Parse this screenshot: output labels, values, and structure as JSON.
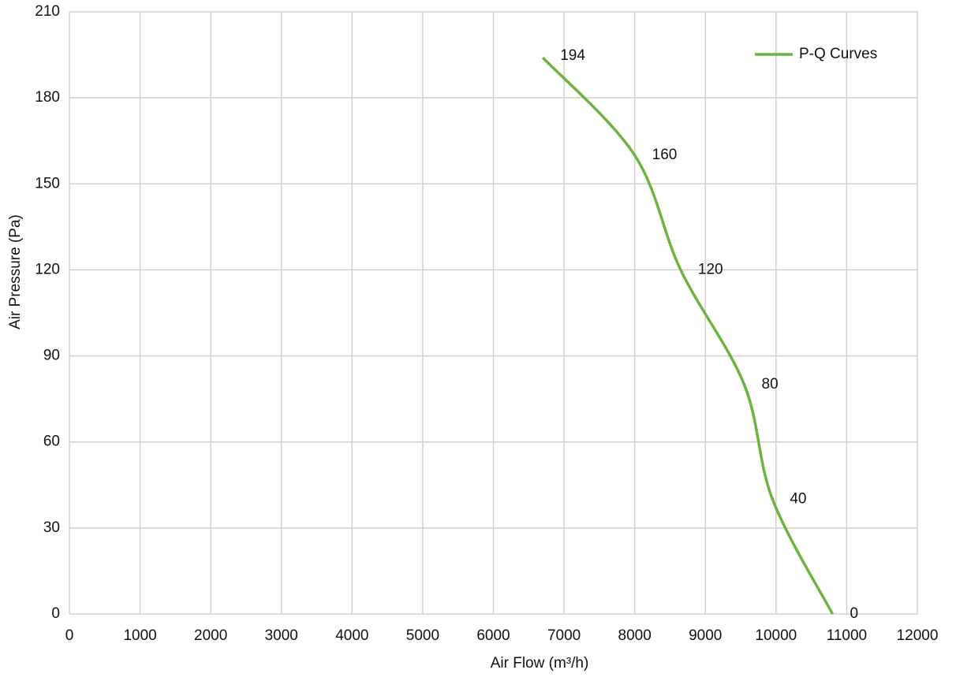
{
  "chart_data": {
    "type": "line",
    "x_label": "Air Flow  (m³/h)",
    "y_label": "Air Pressure  (Pa)",
    "series": [
      {
        "name": "P-Q Curves",
        "color": "#6db33f",
        "x": [
          6700,
          8000,
          8650,
          9550,
          9950,
          10800
        ],
        "values": [
          194,
          160,
          120,
          80,
          40,
          0
        ]
      }
    ],
    "xlim": [
      0,
      12000
    ],
    "xticks": [
      0,
      1000,
      2000,
      3000,
      4000,
      5000,
      6000,
      7000,
      8000,
      9000,
      10000,
      11000,
      12000
    ],
    "ylim": [
      0,
      210
    ],
    "yticks": [
      0,
      30,
      60,
      90,
      120,
      150,
      180,
      210
    ],
    "grid": true,
    "legend": "upper right"
  }
}
